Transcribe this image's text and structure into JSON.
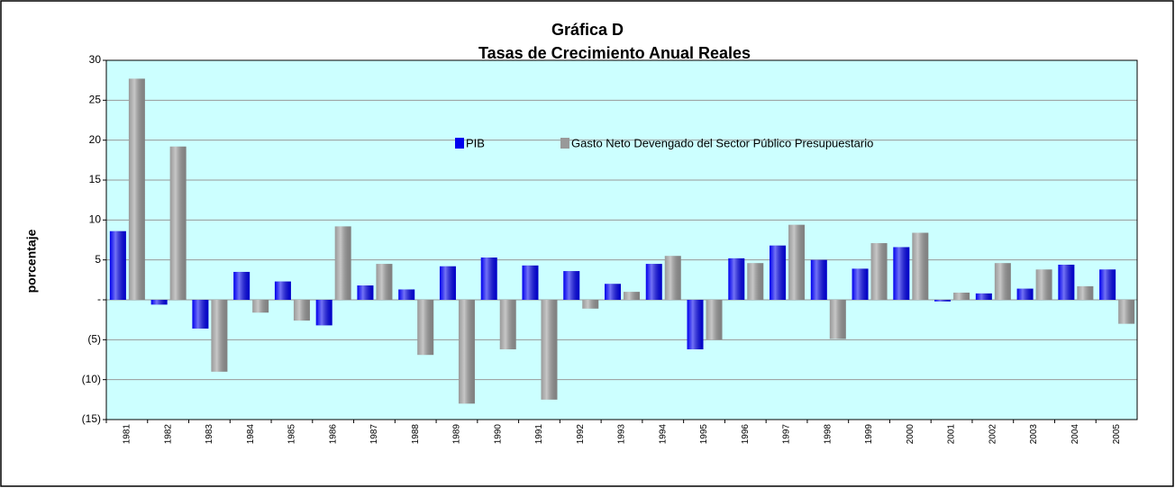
{
  "chart_data": {
    "type": "bar",
    "title": "Gráfica D",
    "subtitle": "Tasas de Crecimiento Anual Reales",
    "ylabel": "porcentaje",
    "categories": [
      "1981",
      "1982",
      "1983",
      "1984",
      "1985",
      "1986",
      "1987",
      "1988",
      "1989",
      "1990",
      "1991",
      "1992",
      "1993",
      "1994",
      "1995",
      "1996",
      "1997",
      "1998",
      "1999",
      "2000",
      "2001",
      "2002",
      "2003",
      "2004",
      "2005"
    ],
    "series": [
      {
        "name": "PIB",
        "color": "#0000ee",
        "values": [
          8.6,
          -0.6,
          -3.6,
          3.5,
          2.3,
          -3.2,
          1.8,
          1.3,
          4.2,
          5.3,
          4.3,
          3.6,
          2.0,
          4.5,
          -6.2,
          5.2,
          6.8,
          5.0,
          3.9,
          6.6,
          -0.2,
          0.8,
          1.4,
          4.4,
          3.8
        ]
      },
      {
        "name": "Gasto Neto Devengado del Sector Público Presupuestario",
        "color": "#999999",
        "values": [
          27.7,
          19.2,
          -9.0,
          -1.6,
          -2.6,
          9.2,
          4.5,
          -6.9,
          -13.0,
          -6.2,
          -12.5,
          -1.1,
          1.0,
          5.5,
          -5.0,
          4.6,
          9.4,
          -4.9,
          7.1,
          8.4,
          0.9,
          4.6,
          3.8,
          1.7,
          -3.0
        ]
      }
    ],
    "ylim": [
      -15,
      30
    ],
    "yticks": [
      30,
      25,
      20,
      15,
      10,
      5,
      {
        "value": 0,
        "label": "-"
      },
      {
        "value": -5,
        "label": "(5)"
      },
      {
        "value": -10,
        "label": "(10)"
      },
      {
        "value": -15,
        "label": "(15)"
      }
    ],
    "grid": true,
    "legend": "top"
  }
}
